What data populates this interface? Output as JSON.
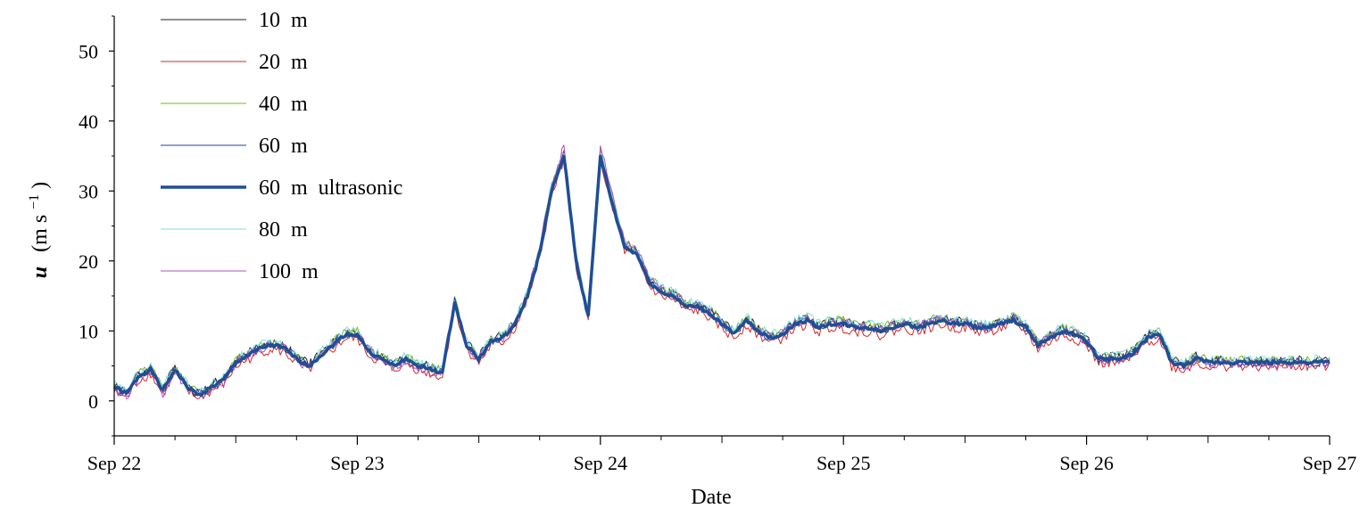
{
  "chart_data": {
    "type": "line",
    "xlabel": "Date",
    "ylabel": {
      "var": "u",
      "unit_prefix": "(m s",
      "unit_exp": "−1",
      "unit_suffix": ")"
    },
    "xlim": [
      0,
      5
    ],
    "ylim": [
      -5,
      55
    ],
    "x_ticks": [
      {
        "x": 0,
        "label": "Sep 22"
      },
      {
        "x": 1,
        "label": "Sep 23"
      },
      {
        "x": 2,
        "label": "Sep 24"
      },
      {
        "x": 3,
        "label": "Sep 25"
      },
      {
        "x": 4,
        "label": "Sep 26"
      },
      {
        "x": 5,
        "label": "Sep 27"
      }
    ],
    "y_ticks": [
      0,
      10,
      20,
      30,
      40,
      50
    ],
    "grid": false,
    "legend_position": "top-left",
    "x_units": "days since Sep 22",
    "base_profile": {
      "x": [
        0,
        0.05,
        0.1,
        0.15,
        0.2,
        0.25,
        0.3,
        0.35,
        0.4,
        0.45,
        0.5,
        0.55,
        0.6,
        0.65,
        0.7,
        0.75,
        0.8,
        0.85,
        0.9,
        0.95,
        1.0,
        1.05,
        1.1,
        1.15,
        1.2,
        1.25,
        1.3,
        1.35,
        1.4,
        1.45,
        1.5,
        1.55,
        1.6,
        1.65,
        1.7,
        1.75,
        1.8,
        1.85,
        1.9,
        1.95,
        2.0,
        2.05,
        2.1,
        2.15,
        2.2,
        2.25,
        2.3,
        2.35,
        2.4,
        2.45,
        2.5,
        2.55,
        2.6,
        2.65,
        2.7,
        2.75,
        2.8,
        2.85,
        2.9,
        2.95,
        3.0,
        3.05,
        3.1,
        3.15,
        3.2,
        3.25,
        3.3,
        3.35,
        3.4,
        3.45,
        3.5,
        3.55,
        3.6,
        3.65,
        3.7,
        3.75,
        3.8,
        3.85,
        3.9,
        3.95,
        4.0,
        4.05,
        4.1,
        4.15,
        4.2,
        4.25,
        4.3,
        4.35,
        4.4,
        4.45,
        4.5,
        4.55,
        4.6,
        4.65,
        4.7,
        4.75,
        4.8,
        4.85,
        4.9,
        4.95,
        5.0
      ],
      "y": [
        2,
        1,
        3.5,
        4.5,
        1.5,
        4.5,
        2,
        0.8,
        2,
        3,
        5.5,
        6.5,
        7.5,
        8,
        7.5,
        6,
        5,
        6.5,
        8,
        9.5,
        9.5,
        7,
        6,
        5,
        6,
        5,
        4.5,
        4,
        14,
        8,
        6,
        8.5,
        9,
        11,
        15,
        21,
        30,
        35,
        20,
        12,
        35,
        28,
        22,
        21,
        17,
        15.5,
        15,
        13.5,
        13.5,
        12.5,
        11,
        9.5,
        11.5,
        10,
        9,
        9.5,
        11,
        11.5,
        10.5,
        11,
        11,
        10.5,
        10.5,
        10,
        10.5,
        11,
        10.5,
        11,
        11.5,
        11,
        11,
        10.5,
        10.5,
        11,
        11.5,
        10.5,
        8,
        9,
        10,
        9.5,
        8.5,
        6,
        6,
        6,
        7,
        9,
        9.5,
        5.5,
        5,
        6,
        5.5,
        5.5,
        5.5,
        5.5,
        5.5,
        5.5,
        5.5,
        5.5,
        5.5,
        5.5,
        5.5
      ]
    },
    "series": [
      {
        "name": "10 m",
        "color": "#222222",
        "width": 1,
        "label_num": "10",
        "label_unit": "m",
        "label_extra": "",
        "scale": 1.0,
        "offset": 0.3,
        "seed": 3
      },
      {
        "name": "20 m",
        "color": "#d62728",
        "width": 1,
        "label_num": "20",
        "label_unit": "m",
        "label_extra": "",
        "scale": 1.0,
        "offset": -0.6,
        "seed": 7
      },
      {
        "name": "40 m",
        "color": "#7cb518",
        "width": 1,
        "label_num": "40",
        "label_unit": "m",
        "label_extra": "",
        "scale": 1.02,
        "offset": 0.2,
        "seed": 11
      },
      {
        "name": "60 m",
        "color": "#2040a8",
        "width": 1,
        "label_num": "60",
        "label_unit": "m",
        "label_extra": "",
        "scale": 1.01,
        "offset": 0.0,
        "seed": 13
      },
      {
        "name": "60 m ultrasonic",
        "color": "#1f4e96",
        "width": 3.5,
        "label_num": "60",
        "label_unit": "m",
        "label_extra": "ultrasonic",
        "scale": 1.0,
        "offset": 0.0,
        "seed": 0
      },
      {
        "name": "80 m",
        "color": "#7fdde0",
        "width": 1,
        "label_num": "80",
        "label_unit": "m",
        "label_extra": "",
        "scale": 1.02,
        "offset": 0.3,
        "seed": 17
      },
      {
        "name": "100 m",
        "color": "#b04fc0",
        "width": 1,
        "label_num": "100",
        "label_unit": "m",
        "label_extra": "",
        "scale": 1.05,
        "offset": -0.4,
        "seed": 19
      }
    ]
  }
}
